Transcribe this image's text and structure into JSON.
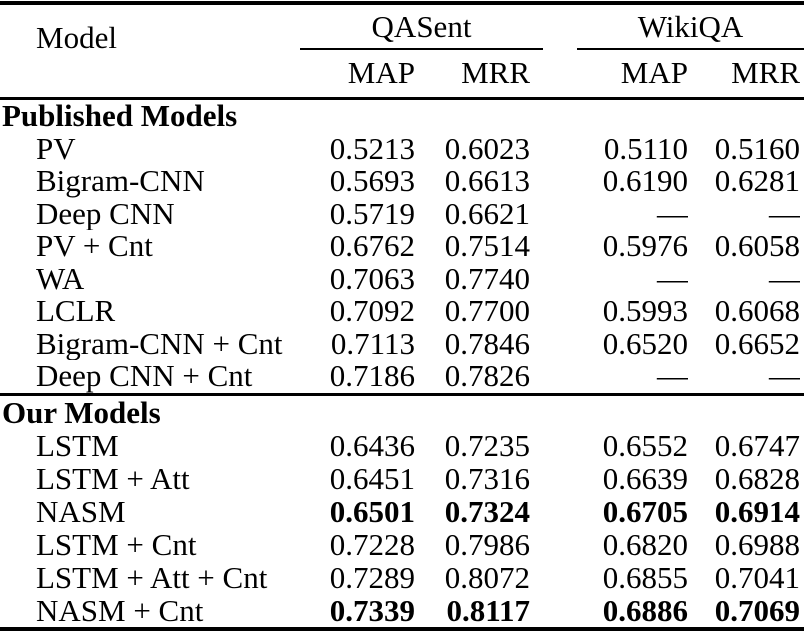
{
  "page": {
    "background_color": "#ffffff",
    "text_color": "#000000"
  },
  "table": {
    "header": {
      "model_label": "Model",
      "group_qasent": "QASent",
      "group_wikiqa": "WikiQA",
      "subheaders": [
        "MAP",
        "MRR",
        "MAP",
        "MRR"
      ]
    },
    "sections": [
      {
        "title": "Published Models",
        "rows": [
          {
            "model": "PV",
            "qasent_map": "0.5213",
            "qasent_mrr": "0.6023",
            "wikiqa_map": "0.5110",
            "wikiqa_mrr": "0.5160",
            "emphasis": false
          },
          {
            "model": "Bigram-CNN",
            "qasent_map": "0.5693",
            "qasent_mrr": "0.6613",
            "wikiqa_map": "0.6190",
            "wikiqa_mrr": "0.6281",
            "emphasis": false
          },
          {
            "model": "Deep CNN",
            "qasent_map": "0.5719",
            "qasent_mrr": "0.6621",
            "wikiqa_map": "—",
            "wikiqa_mrr": "—",
            "emphasis": false
          },
          {
            "model": "PV + Cnt",
            "qasent_map": "0.6762",
            "qasent_mrr": "0.7514",
            "wikiqa_map": "0.5976",
            "wikiqa_mrr": "0.6058",
            "emphasis": false
          },
          {
            "model": "WA",
            "qasent_map": "0.7063",
            "qasent_mrr": "0.7740",
            "wikiqa_map": "—",
            "wikiqa_mrr": "—",
            "emphasis": false
          },
          {
            "model": "LCLR",
            "qasent_map": "0.7092",
            "qasent_mrr": "0.7700",
            "wikiqa_map": "0.5993",
            "wikiqa_mrr": "0.6068",
            "emphasis": false
          },
          {
            "model": "Bigram-CNN + Cnt",
            "qasent_map": "0.7113",
            "qasent_mrr": "0.7846",
            "wikiqa_map": "0.6520",
            "wikiqa_mrr": "0.6652",
            "emphasis": false
          },
          {
            "model": "Deep CNN + Cnt",
            "qasent_map": "0.7186",
            "qasent_mrr": "0.7826",
            "wikiqa_map": "—",
            "wikiqa_mrr": "—",
            "emphasis": false
          }
        ]
      },
      {
        "title": "Our Models",
        "rows": [
          {
            "model": "LSTM",
            "qasent_map": "0.6436",
            "qasent_mrr": "0.7235",
            "wikiqa_map": "0.6552",
            "wikiqa_mrr": "0.6747",
            "emphasis": false
          },
          {
            "model": "LSTM + Att",
            "qasent_map": "0.6451",
            "qasent_mrr": "0.7316",
            "wikiqa_map": "0.6639",
            "wikiqa_mrr": "0.6828",
            "emphasis": false
          },
          {
            "model": "NASM",
            "qasent_map": "0.6501",
            "qasent_mrr": "0.7324",
            "wikiqa_map": "0.6705",
            "wikiqa_mrr": "0.6914",
            "emphasis": true
          },
          {
            "model": "LSTM + Cnt",
            "qasent_map": "0.7228",
            "qasent_mrr": "0.7986",
            "wikiqa_map": "0.6820",
            "wikiqa_mrr": "0.6988",
            "emphasis": false
          },
          {
            "model": "LSTM + Att + Cnt",
            "qasent_map": "0.7289",
            "qasent_mrr": "0.8072",
            "wikiqa_map": "0.6855",
            "wikiqa_mrr": "0.7041",
            "emphasis": false
          },
          {
            "model": "NASM + Cnt",
            "qasent_map": "0.7339",
            "qasent_mrr": "0.8117",
            "wikiqa_map": "0.6886",
            "wikiqa_mrr": "0.7069",
            "emphasis": true
          }
        ]
      }
    ]
  }
}
